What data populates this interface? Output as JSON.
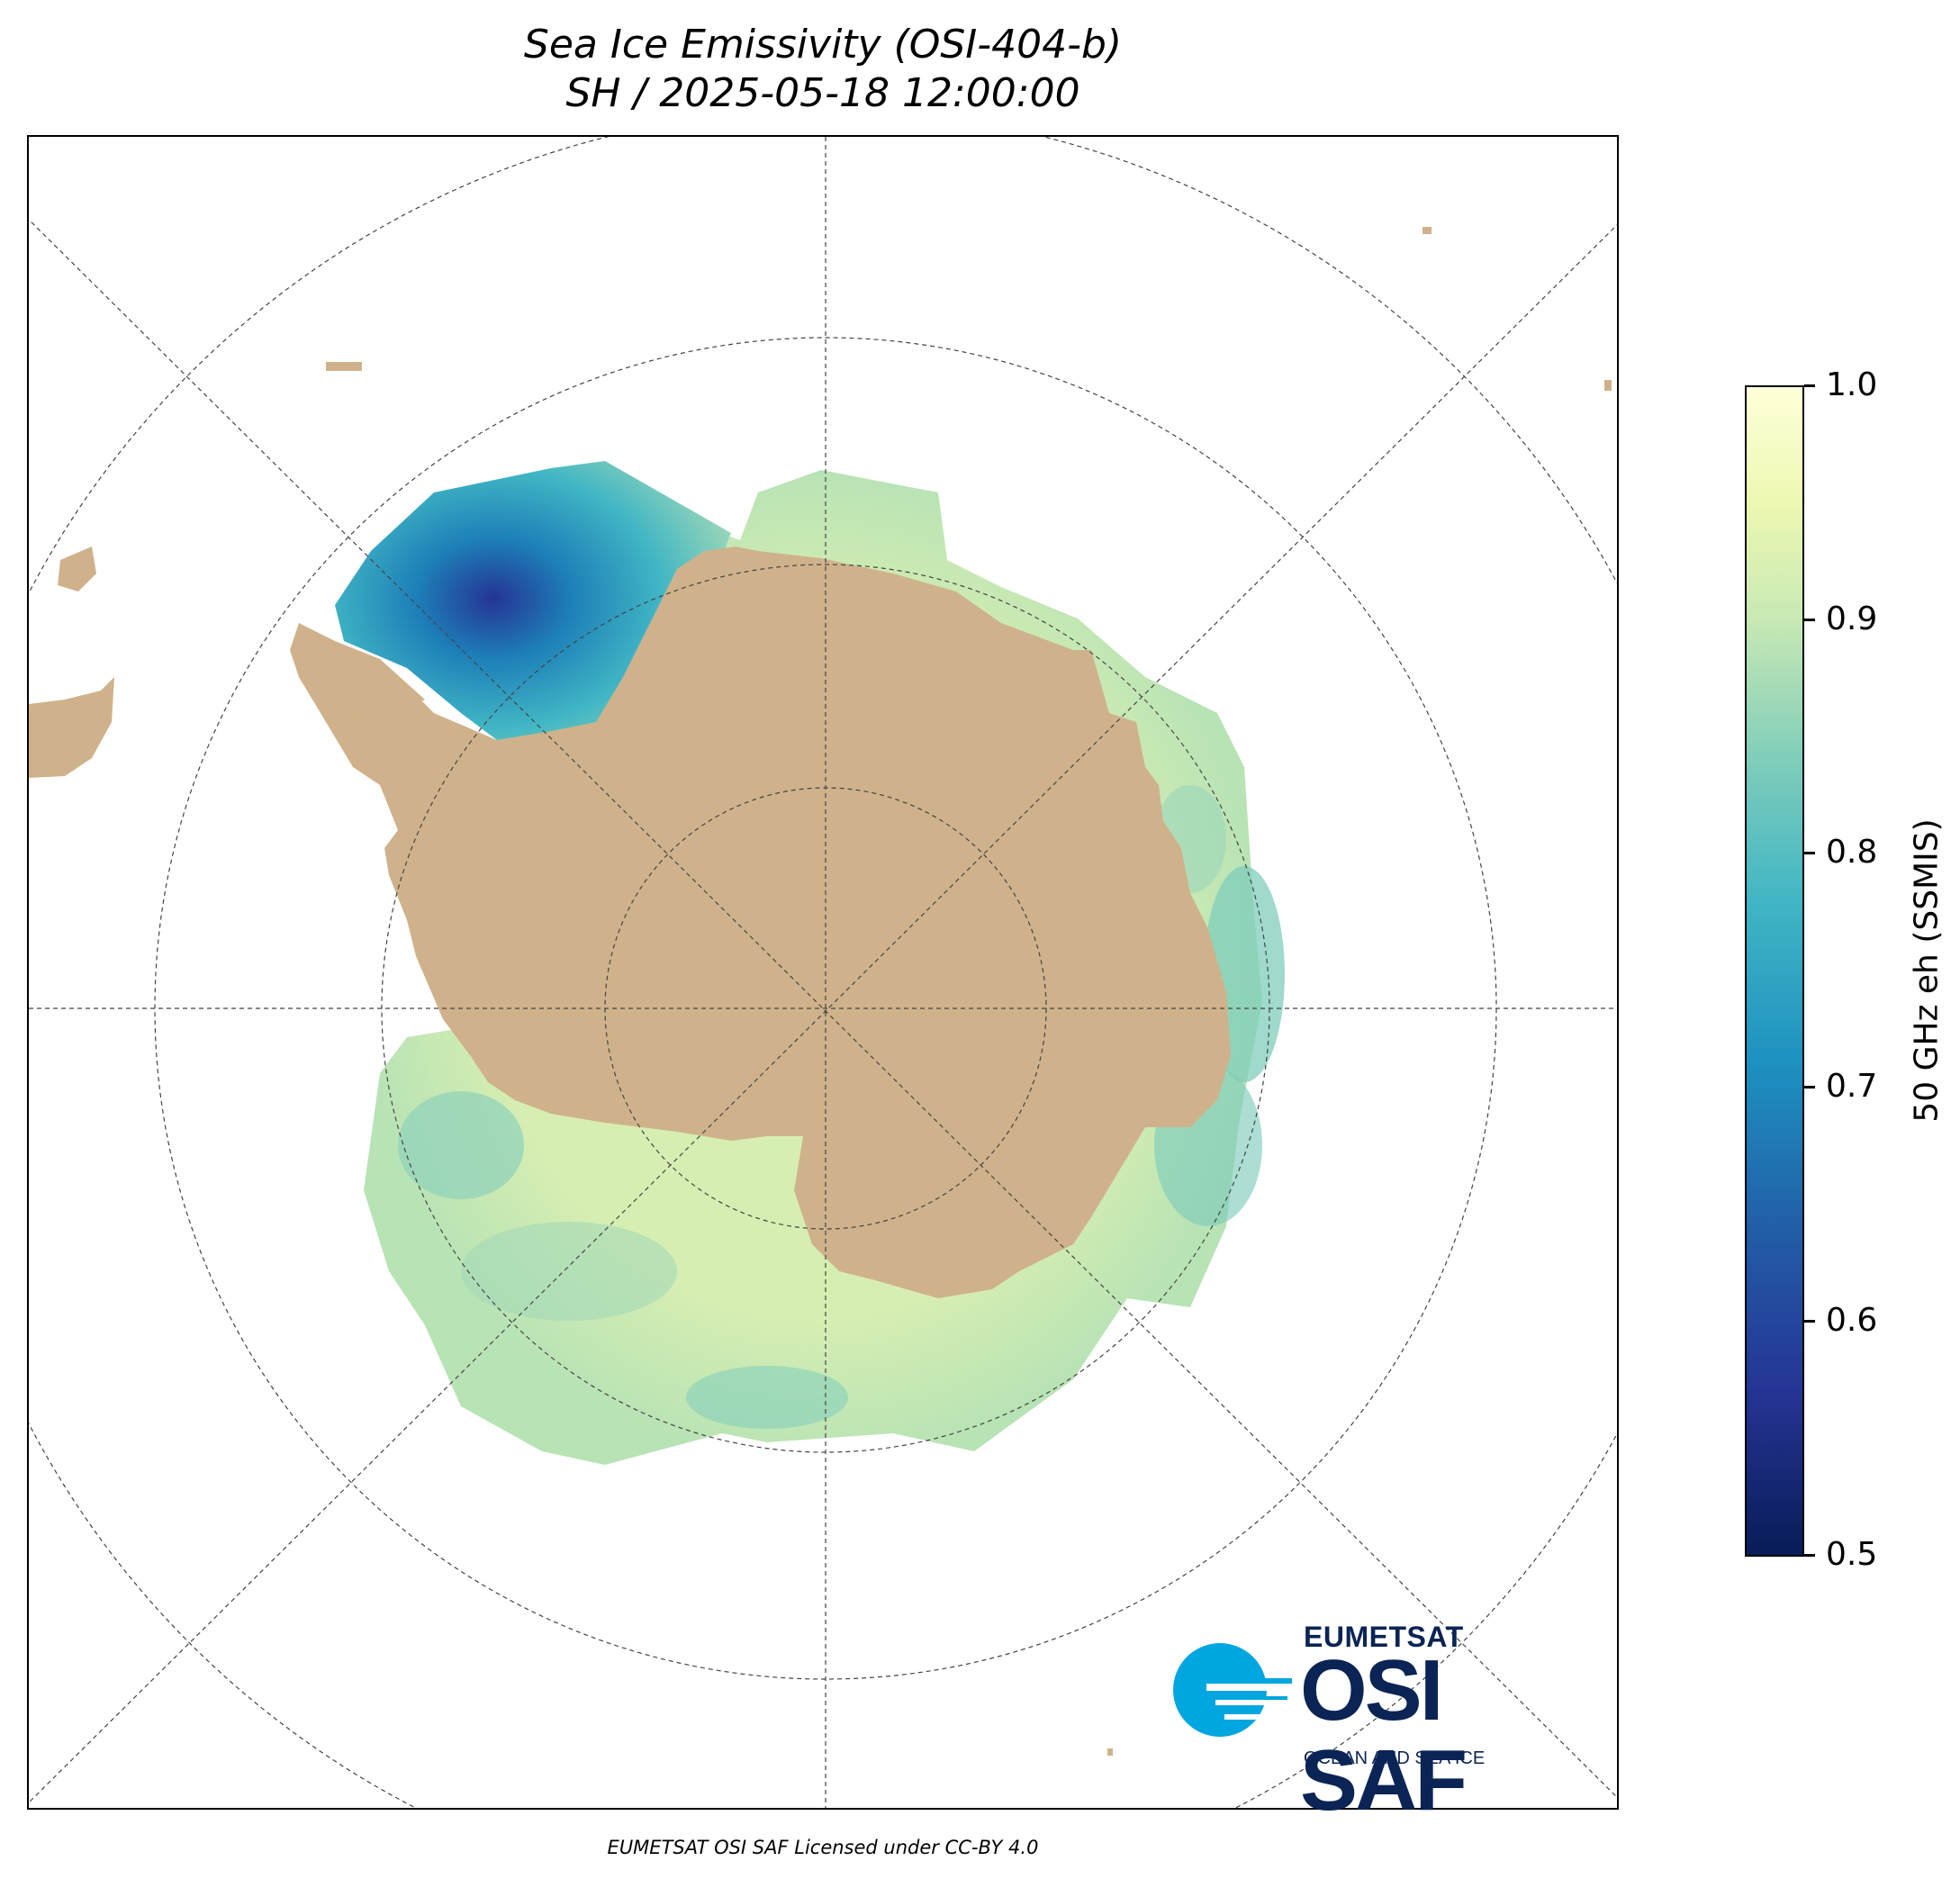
{
  "title": {
    "line1": "Sea Ice Emissivity (OSI-404-b)",
    "line2": "SH / 2025-05-18 12:00:00"
  },
  "colorbar": {
    "label": "50 GHz eh (SSMIS)",
    "min": 0.5,
    "max": 1.0,
    "ticks": [
      "1.0",
      "0.9",
      "0.8",
      "0.7",
      "0.6",
      "0.5"
    ],
    "colormap": "YlGnBu",
    "colors": [
      "#081d58",
      "#253494",
      "#225ea8",
      "#1d91c0",
      "#41b6c4",
      "#7fcdbb",
      "#c7e9b4",
      "#edf8b1",
      "#ffffd9"
    ]
  },
  "map": {
    "projection": "south polar stereographic",
    "land_color": "#cfb28b",
    "graticule": "dashed"
  },
  "logo": {
    "top": "EUMETSAT",
    "main": "OSI SAF",
    "sub": "OCEAN AND SEA ICE",
    "color": "#0a2455",
    "accent": "#00a6e0"
  },
  "footer": "EUMETSAT OSI SAF Licensed under CC-BY 4.0"
}
